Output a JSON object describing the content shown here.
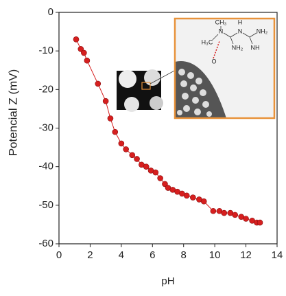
{
  "chart_data": {
    "type": "line",
    "x_label": "pH",
    "y_label": "Potencial Z (mV)",
    "x": [
      1.1,
      1.4,
      1.6,
      1.8,
      2.5,
      3.0,
      3.3,
      3.6,
      4.0,
      4.3,
      4.7,
      5.0,
      5.3,
      5.6,
      5.9,
      6.2,
      6.5,
      6.8,
      7.0,
      7.3,
      7.6,
      7.9,
      8.2,
      8.6,
      9.0,
      9.3,
      9.9,
      10.3,
      10.6,
      11.0,
      11.3,
      11.7,
      12.0,
      12.4,
      12.7,
      12.9
    ],
    "values": [
      -7,
      -9.5,
      -10.5,
      -12.5,
      -18.5,
      -23,
      -27.5,
      -31,
      -34,
      -35.5,
      -37,
      -38,
      -39.5,
      -40,
      -41,
      -41.5,
      -43,
      -44.5,
      -45.5,
      -46,
      -46.5,
      -47,
      -47.5,
      -48,
      -48.5,
      -49,
      -51.5,
      -51.5,
      -52,
      -52,
      -52.5,
      -53,
      -53.5,
      -54,
      -54.5,
      -54.5
    ],
    "color": "#d61f1f",
    "xlim": [
      0,
      14
    ],
    "xticks": [
      0,
      2,
      4,
      6,
      8,
      10,
      12,
      14
    ],
    "ylim": [
      -60,
      0
    ],
    "yticks": [
      -60,
      -50,
      -40,
      -30,
      -20,
      -10,
      0
    ],
    "annotations": [
      "CH₃",
      "H",
      "N",
      "N",
      "NH₂",
      "H₃C",
      "NH₂",
      "NH",
      "O"
    ]
  }
}
